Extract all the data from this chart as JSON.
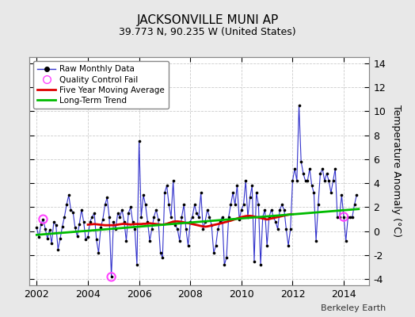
{
  "title": "JACKSONVILLE MUNI AP",
  "subtitle": "39.773 N, 90.235 W (United States)",
  "ylabel": "Temperature Anomaly (°C)",
  "attribution": "Berkeley Earth",
  "xlim": [
    2001.7,
    2015.0
  ],
  "ylim": [
    -4.5,
    14.5
  ],
  "yticks": [
    -4,
    -2,
    0,
    2,
    4,
    6,
    8,
    10,
    12,
    14
  ],
  "xticks": [
    2002,
    2004,
    2006,
    2008,
    2010,
    2012,
    2014
  ],
  "fig_background": "#e8e8e8",
  "plot_background": "#ffffff",
  "raw_color": "#3333cc",
  "dot_color": "#000000",
  "ma_color": "#dd0000",
  "trend_color": "#00bb00",
  "qc_color": "#ff44ff",
  "months": [
    2002.0,
    2002.083,
    2002.167,
    2002.25,
    2002.333,
    2002.417,
    2002.5,
    2002.583,
    2002.667,
    2002.75,
    2002.833,
    2002.917,
    2003.0,
    2003.083,
    2003.167,
    2003.25,
    2003.333,
    2003.417,
    2003.5,
    2003.583,
    2003.667,
    2003.75,
    2003.833,
    2003.917,
    2004.0,
    2004.083,
    2004.167,
    2004.25,
    2004.333,
    2004.417,
    2004.5,
    2004.583,
    2004.667,
    2004.75,
    2004.833,
    2004.917,
    2005.0,
    2005.083,
    2005.167,
    2005.25,
    2005.333,
    2005.417,
    2005.5,
    2005.583,
    2005.667,
    2005.75,
    2005.833,
    2005.917,
    2006.0,
    2006.083,
    2006.167,
    2006.25,
    2006.333,
    2006.417,
    2006.5,
    2006.583,
    2006.667,
    2006.75,
    2006.833,
    2006.917,
    2007.0,
    2007.083,
    2007.167,
    2007.25,
    2007.333,
    2007.417,
    2007.5,
    2007.583,
    2007.667,
    2007.75,
    2007.833,
    2007.917,
    2008.0,
    2008.083,
    2008.167,
    2008.25,
    2008.333,
    2008.417,
    2008.5,
    2008.583,
    2008.667,
    2008.75,
    2008.833,
    2008.917,
    2009.0,
    2009.083,
    2009.167,
    2009.25,
    2009.333,
    2009.417,
    2009.5,
    2009.583,
    2009.667,
    2009.75,
    2009.833,
    2009.917,
    2010.0,
    2010.083,
    2010.167,
    2010.25,
    2010.333,
    2010.417,
    2010.5,
    2010.583,
    2010.667,
    2010.75,
    2010.833,
    2010.917,
    2011.0,
    2011.083,
    2011.167,
    2011.25,
    2011.333,
    2011.417,
    2011.5,
    2011.583,
    2011.667,
    2011.75,
    2011.833,
    2011.917,
    2012.0,
    2012.083,
    2012.167,
    2012.25,
    2012.333,
    2012.417,
    2012.5,
    2012.583,
    2012.667,
    2012.75,
    2012.833,
    2012.917,
    2013.0,
    2013.083,
    2013.167,
    2013.25,
    2013.333,
    2013.417,
    2013.5,
    2013.583,
    2013.667,
    2013.75,
    2013.833,
    2013.917,
    2014.0,
    2014.083,
    2014.167,
    2014.25,
    2014.333,
    2014.417,
    2014.5
  ],
  "anomalies": [
    0.3,
    -0.5,
    0.6,
    1.0,
    0.2,
    -0.6,
    0.1,
    -1.0,
    0.8,
    0.5,
    -1.5,
    -0.6,
    0.4,
    1.2,
    2.2,
    3.0,
    1.8,
    1.6,
    0.3,
    -0.4,
    0.6,
    1.8,
    0.8,
    -0.7,
    -0.5,
    0.8,
    1.2,
    1.5,
    -0.7,
    -1.8,
    0.3,
    1.0,
    2.2,
    2.8,
    1.2,
    -3.8,
    0.8,
    0.2,
    1.5,
    1.2,
    1.8,
    0.8,
    -0.8,
    1.5,
    2.0,
    0.8,
    0.2,
    -2.8,
    7.5,
    1.2,
    3.0,
    2.2,
    0.8,
    -0.8,
    0.2,
    1.2,
    1.8,
    1.0,
    -1.8,
    -2.2,
    3.2,
    3.8,
    2.2,
    1.2,
    4.2,
    0.5,
    0.2,
    -0.8,
    1.2,
    2.2,
    0.2,
    -1.2,
    0.8,
    1.2,
    2.2,
    1.5,
    1.2,
    3.2,
    0.2,
    0.8,
    1.8,
    1.2,
    0.5,
    -1.8,
    -1.2,
    0.2,
    0.8,
    1.2,
    -2.8,
    -2.2,
    1.2,
    2.2,
    3.2,
    2.2,
    3.8,
    1.0,
    1.8,
    2.2,
    4.2,
    1.2,
    2.8,
    3.8,
    -2.5,
    3.2,
    2.2,
    -2.8,
    1.2,
    1.8,
    -1.2,
    1.2,
    1.8,
    1.2,
    0.8,
    0.2,
    1.8,
    2.2,
    1.8,
    0.2,
    -1.2,
    0.2,
    4.2,
    5.2,
    4.2,
    10.5,
    5.8,
    4.8,
    4.2,
    4.2,
    5.2,
    3.8,
    3.2,
    -0.8,
    2.2,
    4.8,
    5.2,
    4.2,
    4.8,
    4.2,
    3.2,
    4.2,
    5.2,
    1.2,
    1.2,
    3.0,
    1.2,
    -0.8,
    1.2,
    1.2,
    1.2,
    2.2,
    3.0
  ],
  "qc_fail_points": [
    [
      2002.25,
      1.0
    ],
    [
      2004.917,
      -3.8
    ],
    [
      2014.0,
      1.2
    ]
  ],
  "moving_avg_x": [
    2004.0,
    2004.083,
    2004.167,
    2004.25,
    2004.333,
    2004.417,
    2004.5,
    2004.583,
    2004.667,
    2004.75,
    2004.833,
    2004.917,
    2005.0,
    2005.083,
    2005.167,
    2005.25,
    2005.333,
    2005.417,
    2005.5,
    2005.583,
    2005.667,
    2005.75,
    2005.833,
    2005.917,
    2006.0,
    2006.083,
    2006.167,
    2006.25,
    2006.333,
    2006.417,
    2006.5,
    2006.583,
    2006.667,
    2006.75,
    2006.833,
    2006.917,
    2007.0,
    2007.083,
    2007.167,
    2007.25,
    2007.333,
    2007.417,
    2007.5,
    2007.583,
    2007.667,
    2007.75,
    2007.833,
    2007.917,
    2008.0,
    2008.083,
    2008.167,
    2008.25,
    2008.333,
    2008.417,
    2008.5,
    2008.583,
    2008.667,
    2008.75,
    2008.833,
    2008.917,
    2009.0,
    2009.083,
    2009.167,
    2009.25,
    2009.333,
    2009.417,
    2009.5,
    2009.583,
    2009.667,
    2009.75,
    2009.833,
    2009.917,
    2010.0,
    2010.083,
    2010.167,
    2010.25,
    2010.333,
    2010.417,
    2010.5,
    2010.583,
    2010.667,
    2010.75,
    2010.833,
    2010.917,
    2011.0,
    2011.083,
    2011.167,
    2011.25,
    2011.333,
    2011.417,
    2011.5,
    2011.583,
    2011.667,
    2011.75,
    2011.833,
    2011.917,
    2012.0
  ],
  "moving_avg_y": [
    0.55,
    0.57,
    0.58,
    0.6,
    0.58,
    0.56,
    0.54,
    0.52,
    0.5,
    0.5,
    0.5,
    0.5,
    0.5,
    0.52,
    0.55,
    0.58,
    0.6,
    0.62,
    0.6,
    0.58,
    0.56,
    0.58,
    0.6,
    0.6,
    0.6,
    0.6,
    0.62,
    0.62,
    0.64,
    0.66,
    0.64,
    0.62,
    0.6,
    0.58,
    0.56,
    0.54,
    0.58,
    0.62,
    0.68,
    0.74,
    0.8,
    0.82,
    0.82,
    0.8,
    0.78,
    0.74,
    0.7,
    0.68,
    0.64,
    0.6,
    0.56,
    0.52,
    0.48,
    0.44,
    0.4,
    0.38,
    0.4,
    0.44,
    0.48,
    0.52,
    0.56,
    0.6,
    0.64,
    0.68,
    0.74,
    0.78,
    0.84,
    0.88,
    0.94,
    1.0,
    1.06,
    1.12,
    1.18,
    1.22,
    1.26,
    1.28,
    1.28,
    1.26,
    1.22,
    1.18,
    1.14,
    1.1,
    1.06,
    1.02,
    0.98,
    1.02,
    1.06,
    1.1,
    1.14,
    1.18,
    1.22,
    1.26,
    1.3,
    1.34,
    1.38,
    1.42,
    1.42
  ],
  "trend_x": [
    2002.0,
    2014.583
  ],
  "trend_y": [
    -0.3,
    1.85
  ]
}
